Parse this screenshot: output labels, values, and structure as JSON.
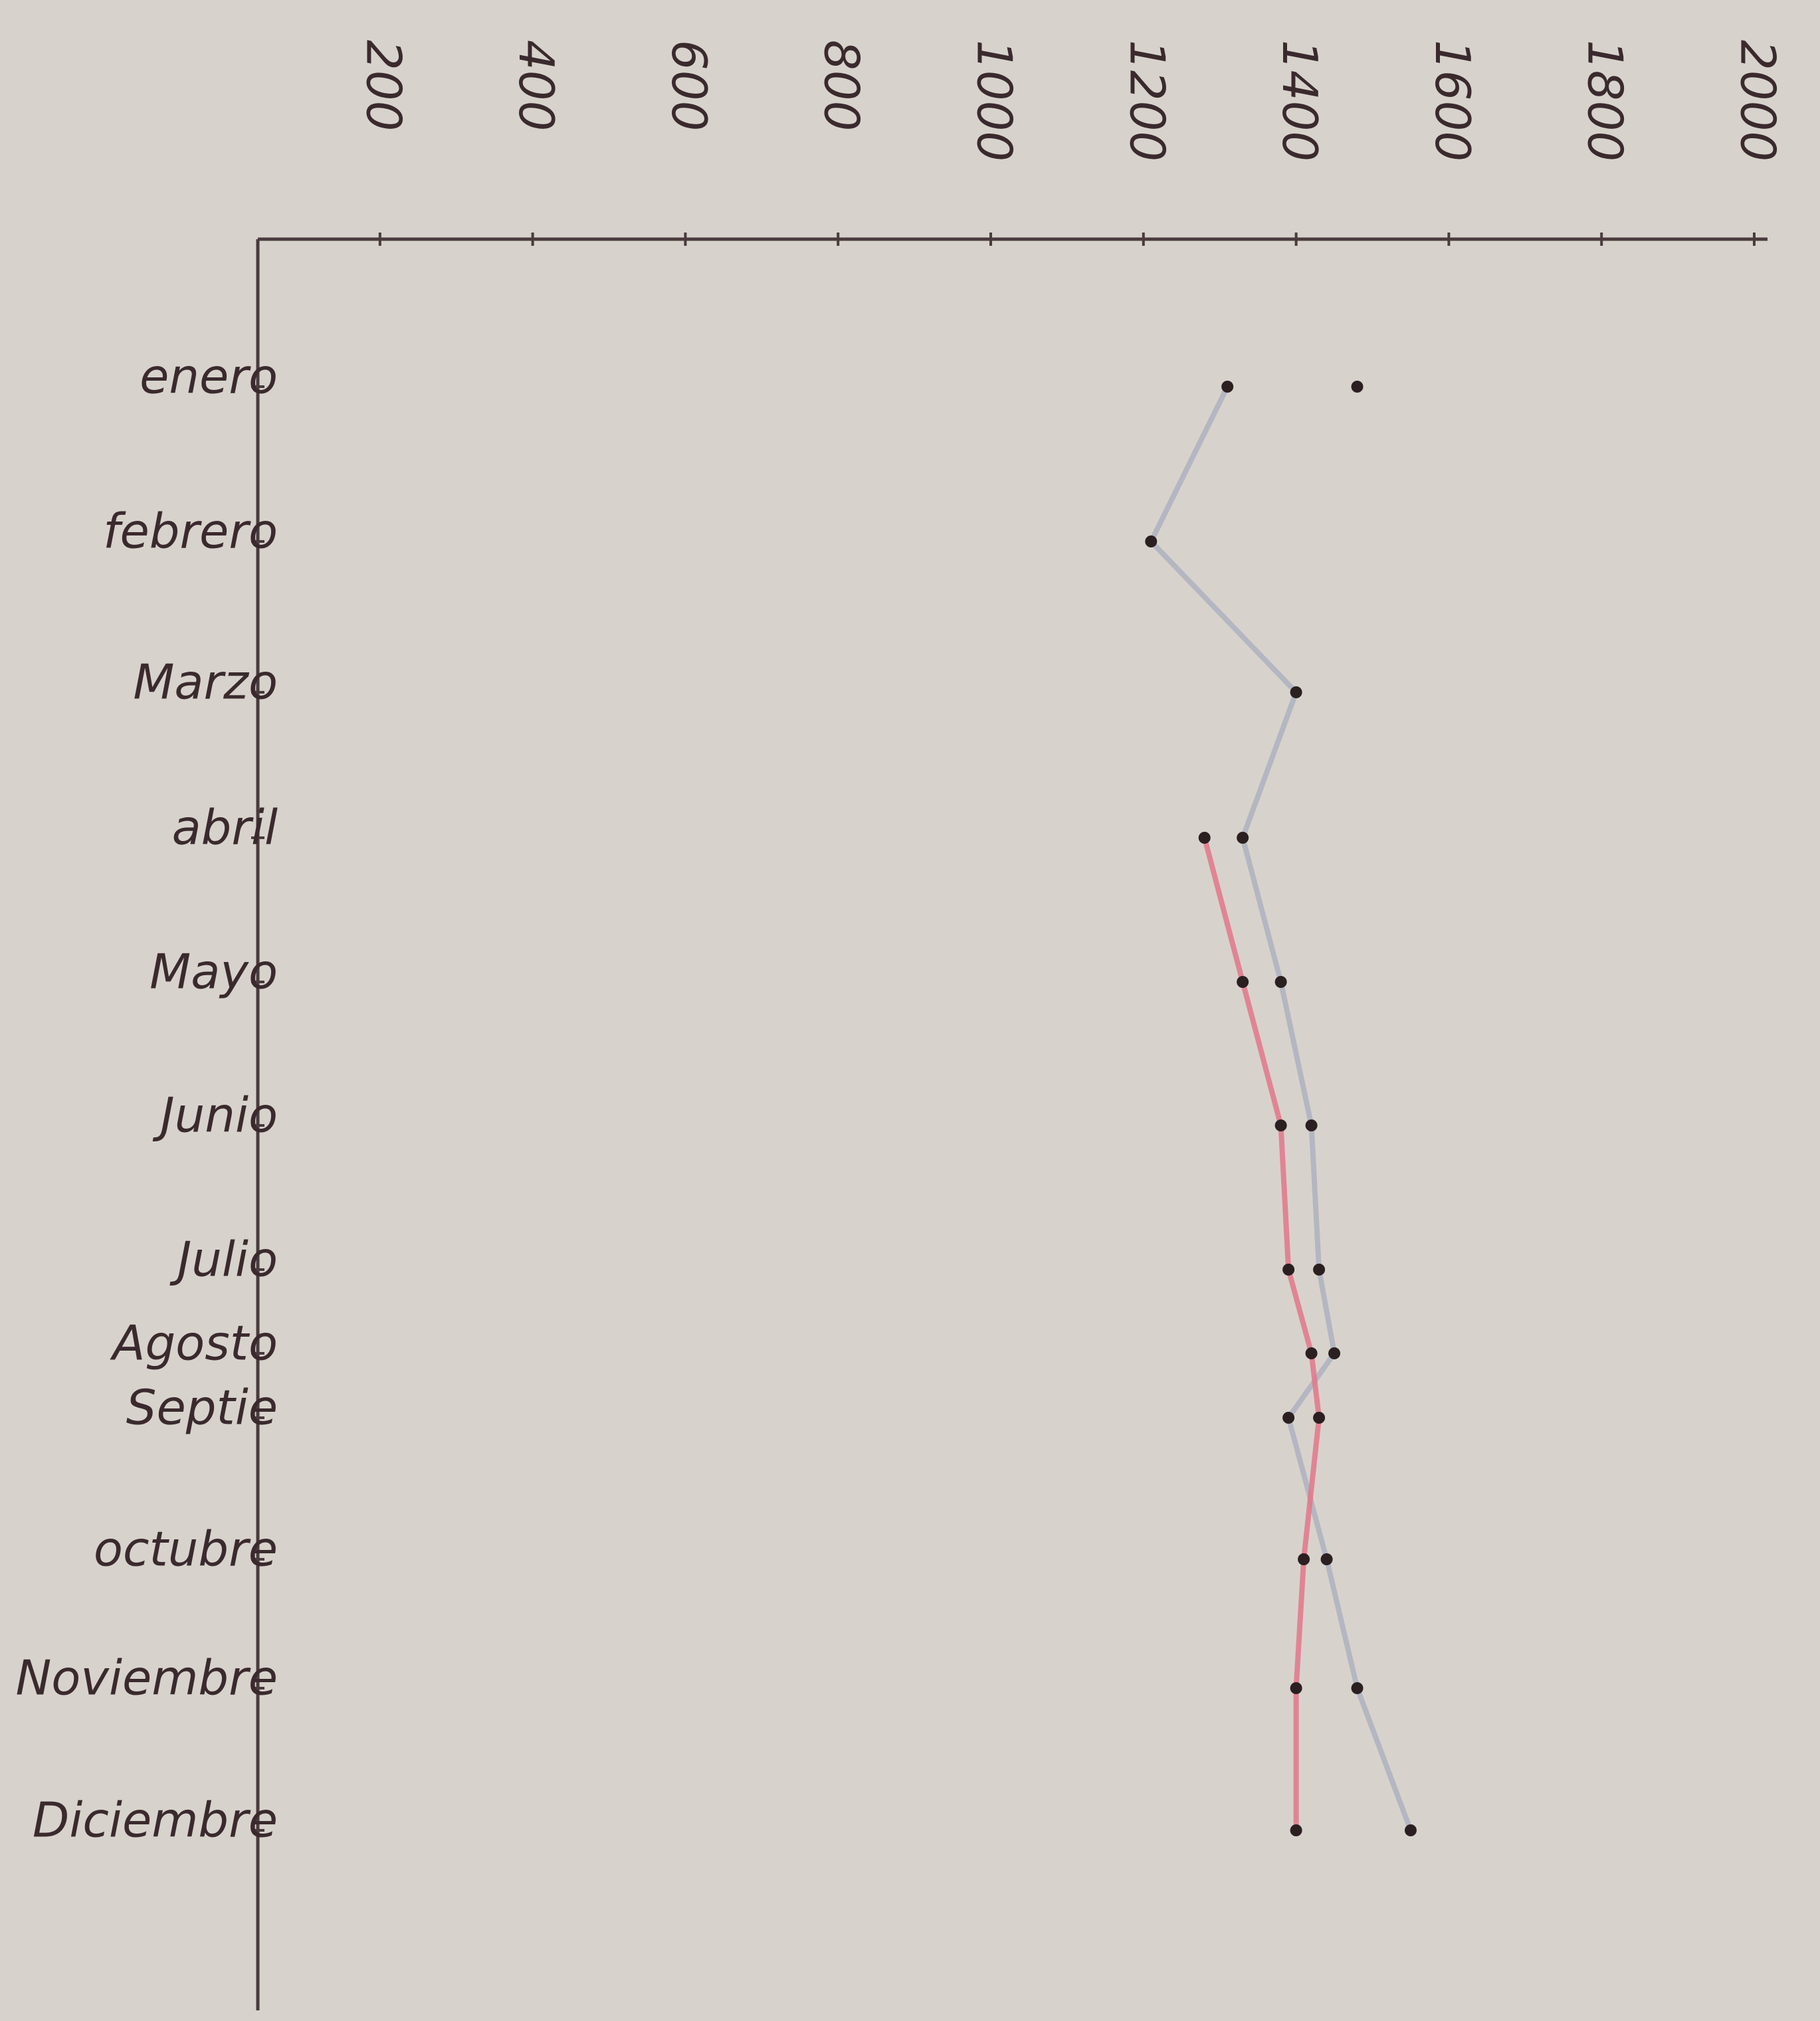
{
  "chart_data": {
    "type": "line",
    "orientation": "horizontal",
    "categories": [
      "enero",
      "febrero",
      "Marzo",
      "abril",
      "Mayo",
      "Junio",
      "Julio",
      "Agosto",
      "Septie",
      "octubre",
      "Noviembre",
      "Diciembre"
    ],
    "series": [
      {
        "color": "#aeb2bf",
        "values": [
          1310,
          1210,
          1400,
          1330,
          1380,
          1420,
          1430,
          1450,
          1390,
          1440,
          1480,
          1550
        ]
      },
      {
        "color": "#e3768a",
        "values": [
          1480,
          null,
          null,
          1280,
          1330,
          1380,
          1390,
          1420,
          1430,
          1410,
          1400,
          1400
        ]
      }
    ],
    "xlim": [
      40,
      2000
    ],
    "xticks": [
      200,
      400,
      600,
      800,
      1000,
      1200,
      1400,
      1600,
      1800,
      2000
    ],
    "grid": false
  }
}
